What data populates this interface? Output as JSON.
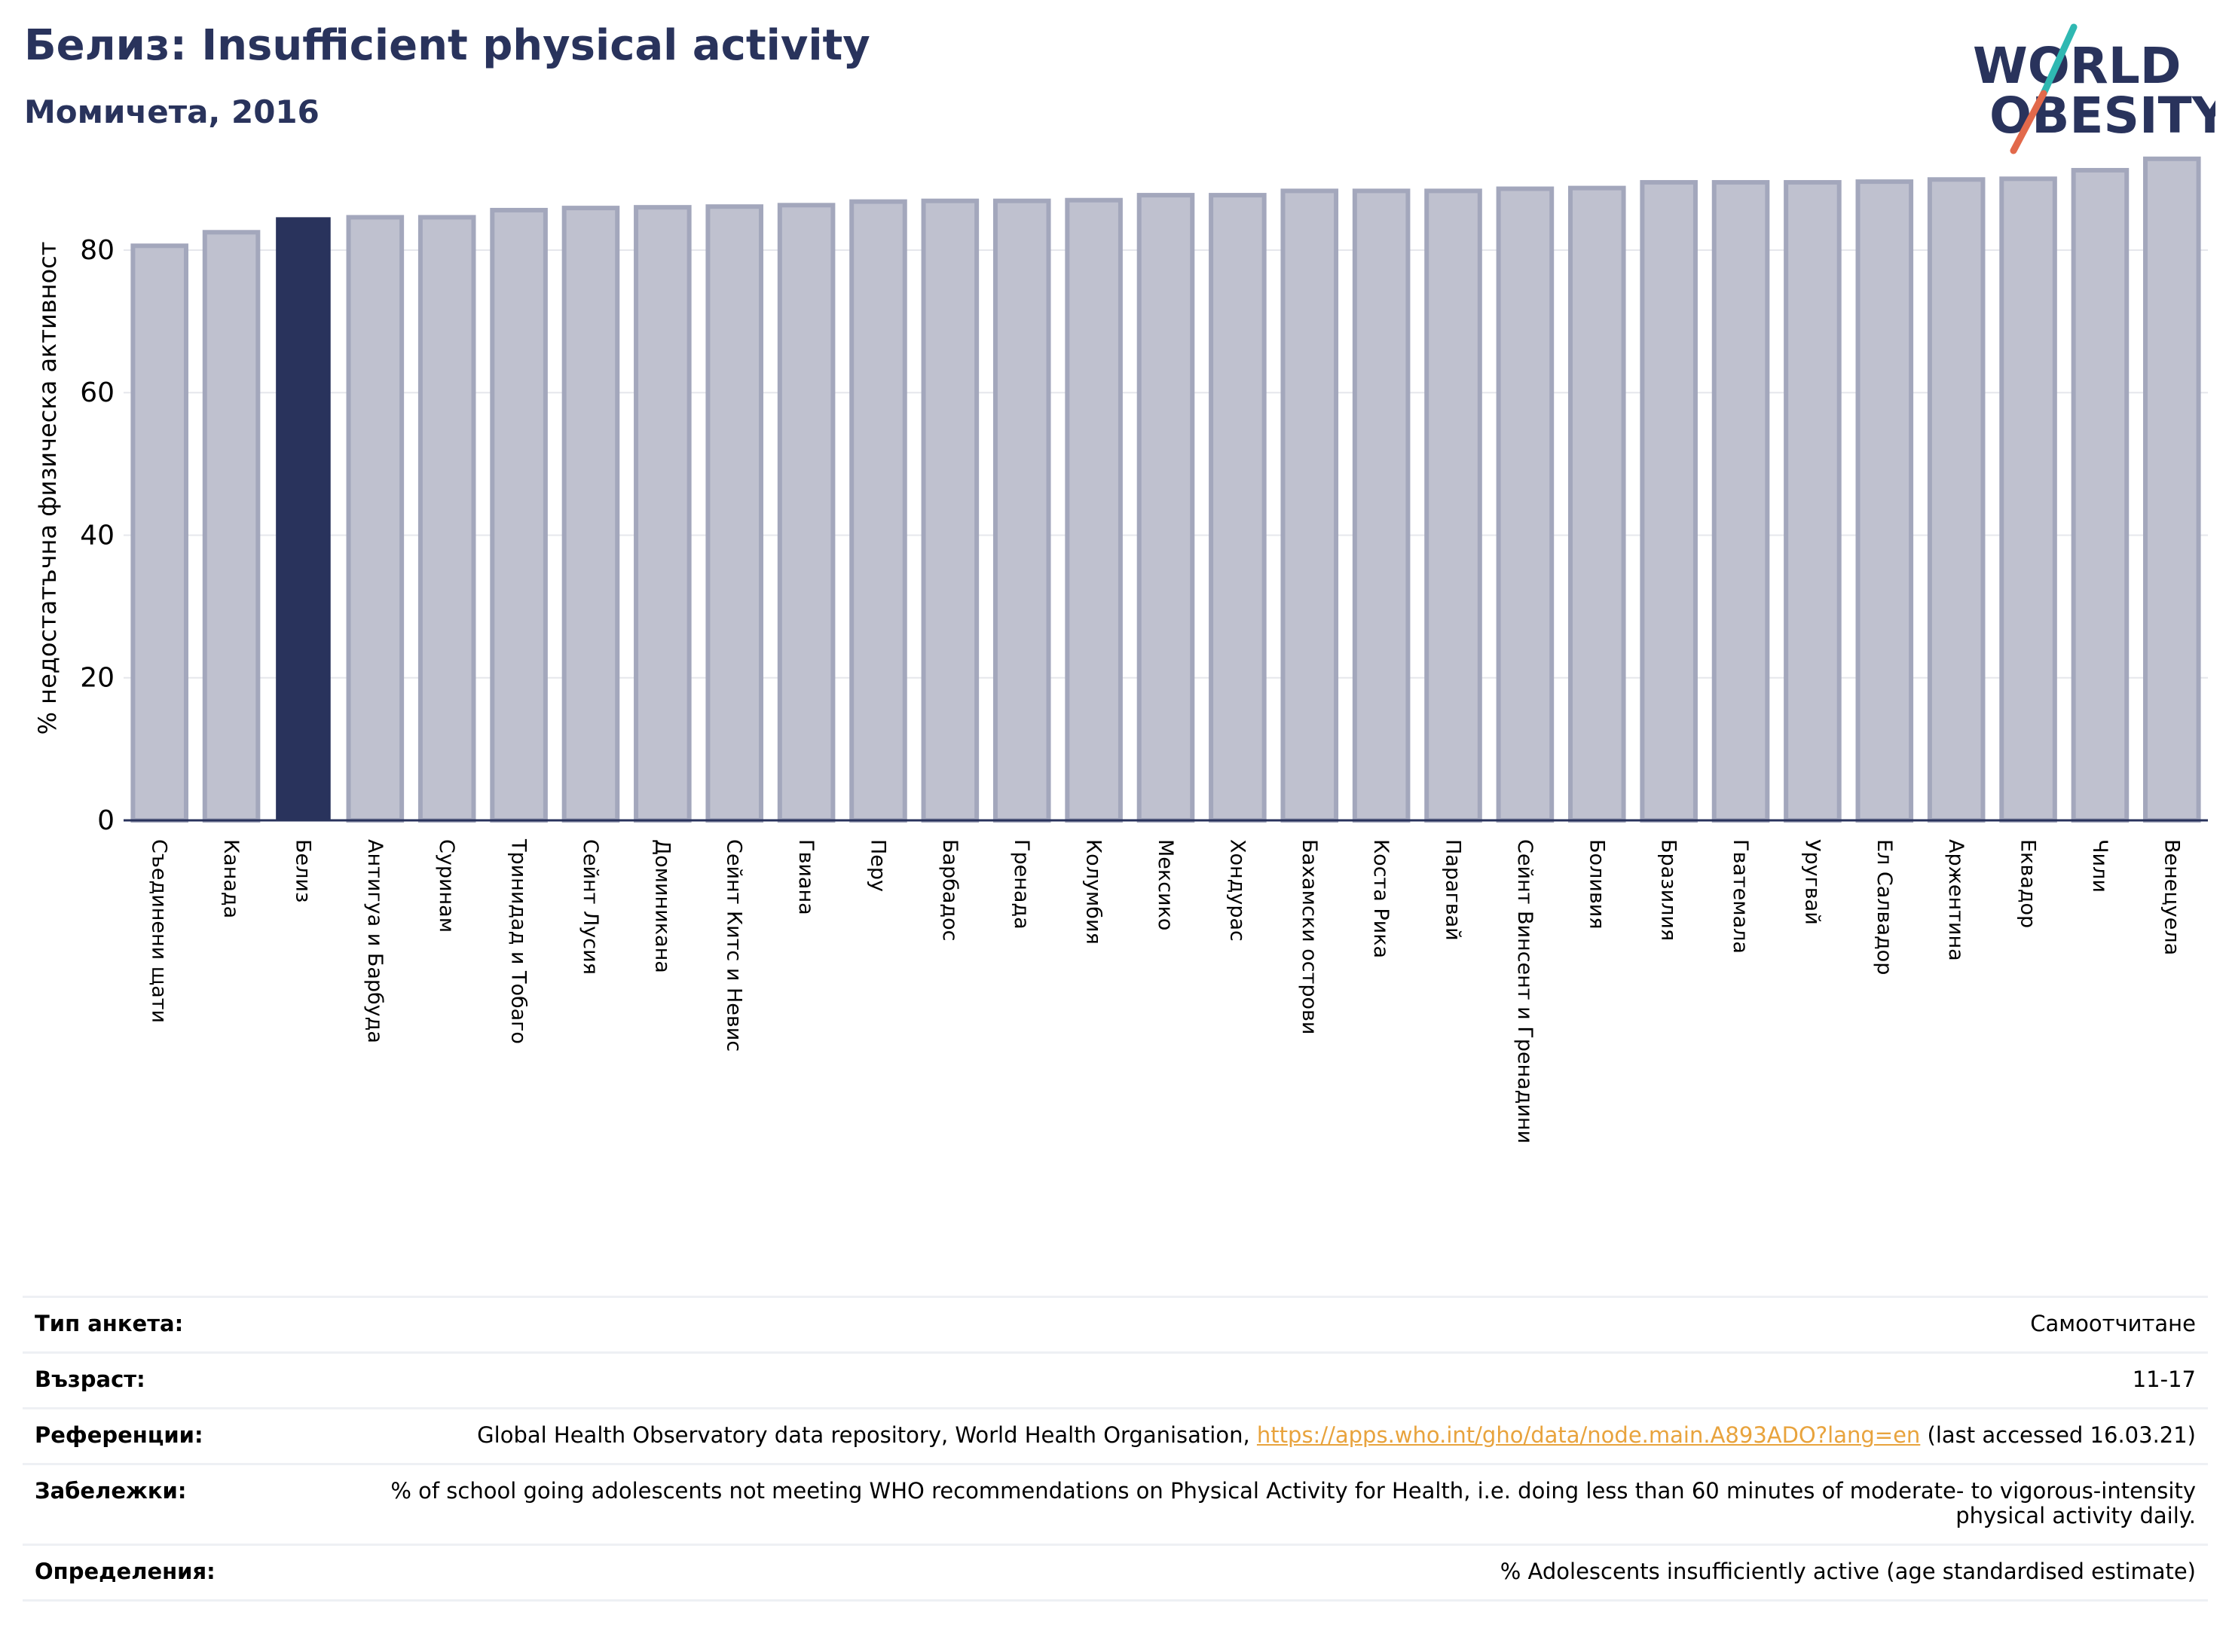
{
  "header": {
    "title": "Белиз: Insufficient physical activity",
    "subtitle": "Момичета, 2016"
  },
  "logo": {
    "line1": "WORLD",
    "line2": "OBESITY"
  },
  "colors": {
    "highlight_bar": "#29335c",
    "other_bar": "#bfc1cf",
    "bar_edge": "#a3a7bc",
    "text_dark": "#29335c",
    "logo_teal": "#2fb8b2",
    "logo_orange": "#e2694b",
    "link": "#e8a33d"
  },
  "chart_data": {
    "type": "bar",
    "title": "",
    "xlabel": "",
    "ylabel": "% недостатъчна физическа активност",
    "ylim": [
      0,
      95
    ],
    "yticks": [
      0,
      20,
      40,
      60,
      80
    ],
    "grid": true,
    "highlight": "Белиз",
    "categories": [
      "Съединени щати",
      "Канада",
      "Белиз",
      "Антигуа и Барбуда",
      "Суринам",
      "Тринидад и Тобаго",
      "Сейнт Лусия",
      "Доминикана",
      "Сейнт Китс и Невис",
      "Гвиана",
      "Перу",
      "Барбадос",
      "Гренада",
      "Колумбия",
      "Мексико",
      "Хондурас",
      "Бахамски острови",
      "Коста Рика",
      "Парагвай",
      "Сейнт Винсент и Гренадини",
      "Боливия",
      "Бразилия",
      "Гватемала",
      "Уругвай",
      "Ел Салвадор",
      "Аржентина",
      "Еквадор",
      "Чили",
      "Венецуела"
    ],
    "values": [
      80.6,
      82.5,
      84.5,
      84.6,
      84.6,
      85.6,
      85.9,
      86.0,
      86.1,
      86.3,
      86.8,
      86.9,
      86.9,
      87.0,
      87.7,
      87.7,
      88.3,
      88.3,
      88.3,
      88.6,
      88.7,
      89.5,
      89.5,
      89.5,
      89.6,
      89.9,
      90.0,
      91.2,
      92.8
    ]
  },
  "info": {
    "rows": [
      {
        "label": "Тип анкета:",
        "value": "Самоотчитане"
      },
      {
        "label": "Възраст:",
        "value": "11-17"
      },
      {
        "label": "Референции:",
        "value_pre": "Global Health Observatory data repository, World Health Organisation, ",
        "link": "https://apps.who.int/gho/data/node.main.A893ADO?lang=en",
        "value_post": " (last accessed 16.03.21)"
      },
      {
        "label": "Забележки:",
        "value": "% of school going adolescents not meeting WHO recommendations on Physical Activity for Health, i.e. doing less than 60 minutes of moderate- to vigorous-intensity physical activity daily."
      },
      {
        "label": "Определения:",
        "value": "% Adolescents insufficiently active (age standardised estimate)"
      }
    ]
  }
}
